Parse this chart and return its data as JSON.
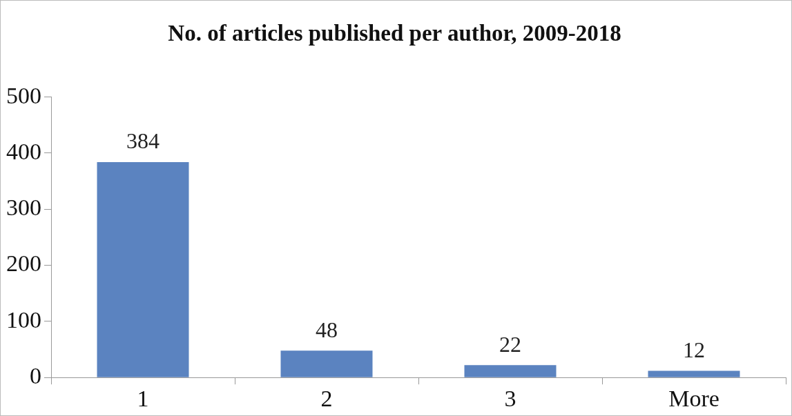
{
  "chart_data": {
    "type": "bar",
    "title": "No. of articles published per author, 2009-2018",
    "categories": [
      "1",
      "2",
      "3",
      "More"
    ],
    "values": [
      384,
      48,
      22,
      12
    ],
    "color": "#5b83c0",
    "ylim": [
      0,
      500
    ],
    "yticks": [
      0,
      100,
      200,
      300,
      400,
      500
    ],
    "grid": false,
    "data_labels": true
  }
}
